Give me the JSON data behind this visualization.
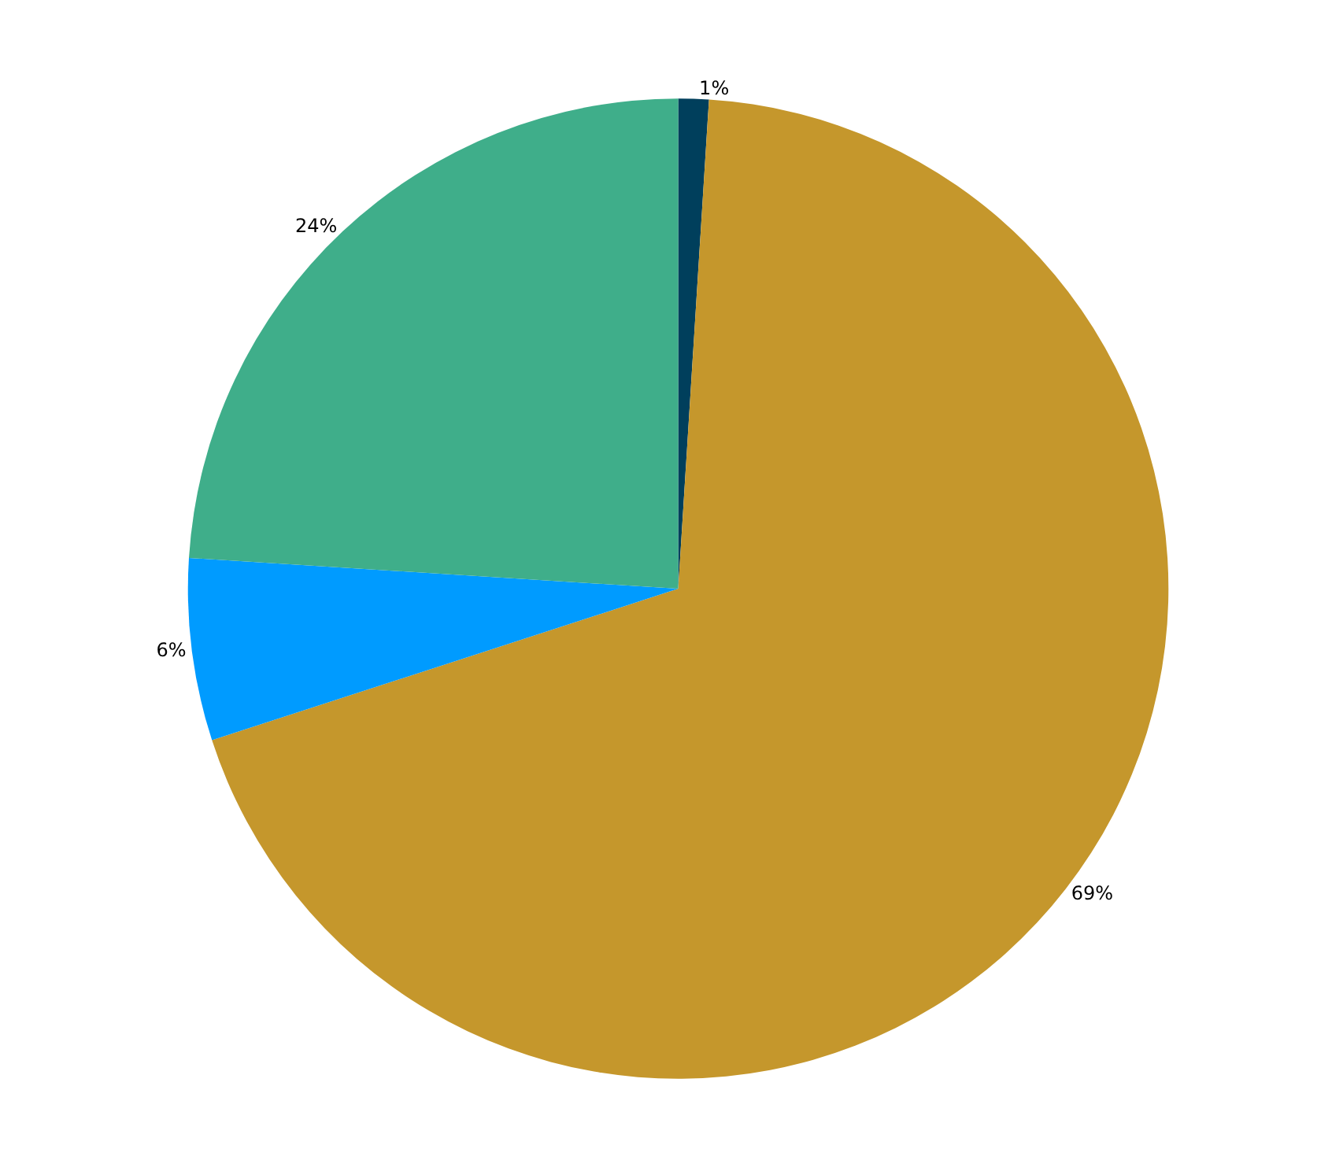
{
  "chart_data": {
    "type": "pie",
    "categories": [
      null,
      null,
      null,
      null
    ],
    "values": [
      1,
      69,
      6,
      24
    ],
    "colors": [
      "#003f5c",
      "#c5972c",
      "#009bff",
      "#3fae8a"
    ],
    "value_labels": [
      "1%",
      "69%",
      "6%",
      "24%"
    ],
    "legend": false
  }
}
